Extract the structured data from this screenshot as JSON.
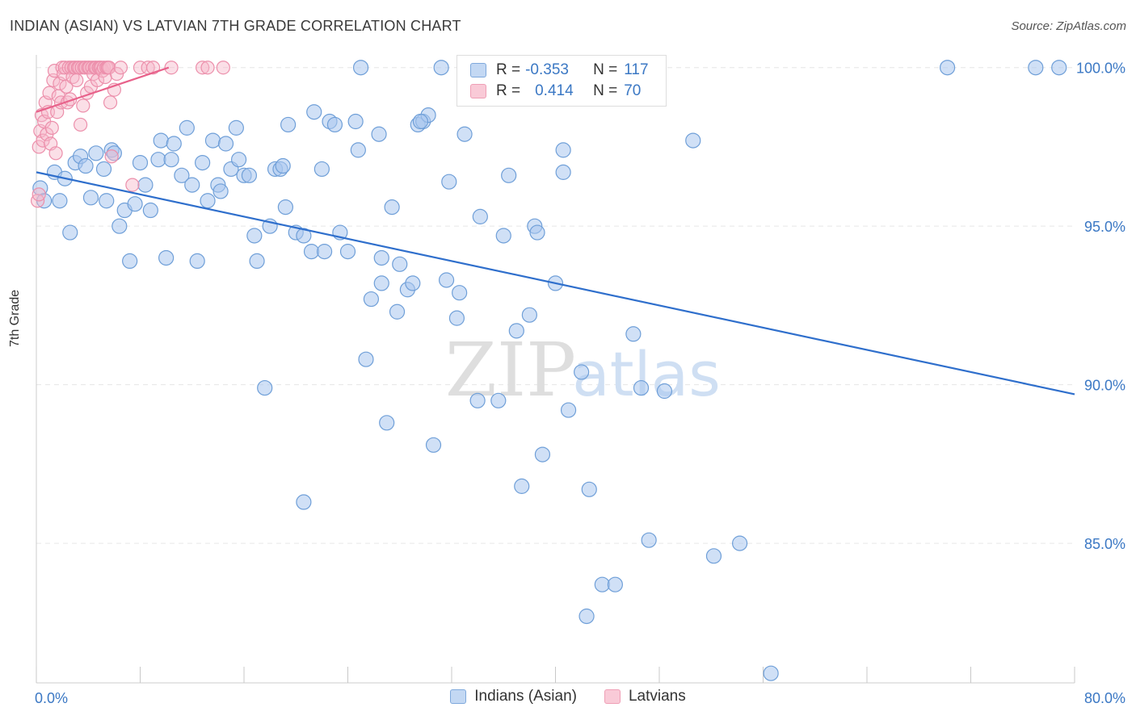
{
  "title": "INDIAN (ASIAN) VS LATVIAN 7TH GRADE CORRELATION CHART",
  "source": "Source: ZipAtlas.com",
  "watermark": {
    "zip": "ZIP",
    "atlas": "atlas"
  },
  "colors": {
    "blue_fill": "#a9c6ee",
    "blue_stroke": "#6f9fd8",
    "blue_line": "#2f6fcc",
    "pink_fill": "#f6b7c9",
    "pink_stroke": "#ec8fab",
    "pink_line": "#e8628b",
    "tick_text": "#3b78c4"
  },
  "legend": {
    "rows": [
      {
        "r_label": "R =",
        "r_value": "-0.353",
        "n_label": "N =",
        "n_value": "117"
      },
      {
        "r_label": "R =",
        "r_value": "0.414",
        "n_label": "N =",
        "n_value": "70"
      }
    ]
  },
  "bottom_legend": [
    "Indians (Asian)",
    "Latvians"
  ],
  "chart_data": {
    "type": "scatter",
    "title": "INDIAN (ASIAN) VS LATVIAN 7TH GRADE CORRELATION CHART",
    "xlabel": "",
    "ylabel": "7th Grade",
    "xlim": [
      0,
      80
    ],
    "ylim": [
      80.6,
      100.4
    ],
    "x_tick_labels": [
      "0.0%",
      "80.0%"
    ],
    "y_ticks": [
      85,
      90,
      95,
      100
    ],
    "y_tick_labels": [
      "85.0%",
      "90.0%",
      "95.0%",
      "100.0%"
    ],
    "grid": true,
    "series": [
      {
        "name": "Indians (Asian)",
        "r": -0.353,
        "n": 117,
        "trend": {
          "x": [
            0,
            80
          ],
          "y": [
            96.7,
            89.7
          ]
        },
        "points": [
          [
            0.3,
            96.2
          ],
          [
            0.6,
            95.8
          ],
          [
            1.4,
            96.7
          ],
          [
            1.8,
            95.8
          ],
          [
            2.2,
            96.5
          ],
          [
            2.6,
            94.8
          ],
          [
            3.0,
            97.0
          ],
          [
            3.4,
            97.2
          ],
          [
            3.8,
            96.9
          ],
          [
            4.2,
            95.9
          ],
          [
            4.6,
            97.3
          ],
          [
            5.2,
            96.8
          ],
          [
            5.4,
            95.8
          ],
          [
            5.8,
            97.4
          ],
          [
            6.0,
            97.3
          ],
          [
            6.4,
            95.0
          ],
          [
            6.8,
            95.5
          ],
          [
            7.2,
            93.9
          ],
          [
            7.6,
            95.7
          ],
          [
            8.0,
            97.0
          ],
          [
            8.4,
            96.3
          ],
          [
            8.8,
            95.5
          ],
          [
            9.4,
            97.1
          ],
          [
            9.6,
            97.7
          ],
          [
            10.0,
            94.0
          ],
          [
            10.4,
            97.1
          ],
          [
            10.6,
            97.6
          ],
          [
            11.2,
            96.6
          ],
          [
            11.6,
            98.1
          ],
          [
            12.0,
            96.3
          ],
          [
            12.4,
            93.9
          ],
          [
            12.8,
            97.0
          ],
          [
            13.2,
            95.8
          ],
          [
            13.6,
            97.7
          ],
          [
            14.0,
            96.3
          ],
          [
            14.2,
            96.1
          ],
          [
            14.6,
            97.6
          ],
          [
            15.0,
            96.8
          ],
          [
            15.4,
            98.1
          ],
          [
            15.6,
            97.1
          ],
          [
            16.0,
            96.6
          ],
          [
            16.4,
            96.6
          ],
          [
            16.8,
            94.7
          ],
          [
            17.0,
            93.9
          ],
          [
            17.6,
            89.9
          ],
          [
            18.0,
            95.0
          ],
          [
            18.4,
            96.8
          ],
          [
            18.8,
            96.8
          ],
          [
            19.2,
            95.6
          ],
          [
            19.4,
            98.2
          ],
          [
            20.0,
            94.8
          ],
          [
            20.6,
            94.7
          ],
          [
            20.6,
            86.3
          ],
          [
            21.2,
            94.2
          ],
          [
            21.4,
            98.6
          ],
          [
            22.0,
            96.8
          ],
          [
            22.2,
            94.2
          ],
          [
            22.6,
            98.3
          ],
          [
            23.0,
            98.2
          ],
          [
            23.4,
            94.8
          ],
          [
            24.0,
            94.2
          ],
          [
            24.6,
            98.3
          ],
          [
            24.8,
            97.4
          ],
          [
            25.4,
            90.8
          ],
          [
            25.8,
            92.7
          ],
          [
            26.4,
            97.9
          ],
          [
            26.6,
            93.2
          ],
          [
            26.6,
            94.0
          ],
          [
            27.0,
            88.8
          ],
          [
            27.4,
            95.6
          ],
          [
            27.8,
            92.3
          ],
          [
            28.0,
            93.8
          ],
          [
            28.6,
            93.0
          ],
          [
            29.0,
            93.2
          ],
          [
            29.4,
            98.2
          ],
          [
            29.8,
            98.3
          ],
          [
            30.2,
            98.5
          ],
          [
            30.6,
            88.1
          ],
          [
            31.2,
            100.0
          ],
          [
            31.6,
            93.3
          ],
          [
            31.8,
            96.4
          ],
          [
            32.4,
            92.1
          ],
          [
            32.6,
            92.9
          ],
          [
            34.0,
            89.5
          ],
          [
            34.2,
            95.3
          ],
          [
            35.6,
            89.5
          ],
          [
            36.0,
            94.7
          ],
          [
            36.4,
            96.6
          ],
          [
            37.0,
            91.7
          ],
          [
            37.4,
            86.8
          ],
          [
            38.0,
            92.2
          ],
          [
            38.4,
            95.0
          ],
          [
            38.6,
            94.8
          ],
          [
            39.0,
            87.8
          ],
          [
            40.0,
            93.2
          ],
          [
            40.6,
            96.7
          ],
          [
            40.6,
            97.4
          ],
          [
            41.0,
            89.2
          ],
          [
            42.0,
            90.4
          ],
          [
            42.4,
            82.7
          ],
          [
            42.6,
            86.7
          ],
          [
            43.6,
            83.7
          ],
          [
            44.6,
            83.7
          ],
          [
            46.0,
            91.6
          ],
          [
            46.6,
            89.9
          ],
          [
            47.2,
            85.1
          ],
          [
            48.4,
            89.8
          ],
          [
            50.6,
            97.7
          ],
          [
            52.2,
            84.6
          ],
          [
            54.2,
            85.0
          ],
          [
            56.6,
            80.9
          ],
          [
            70.2,
            100.0
          ],
          [
            77.0,
            100.0
          ],
          [
            78.8,
            100.0
          ],
          [
            25.0,
            100.0
          ],
          [
            47.4,
            100.0
          ],
          [
            29.6,
            98.3
          ],
          [
            19.0,
            96.9
          ],
          [
            33.0,
            97.9
          ]
        ]
      },
      {
        "name": "Latvians",
        "r": 0.414,
        "n": 70,
        "trend": {
          "x": [
            0,
            10.2
          ],
          "y": [
            98.6,
            100.0
          ]
        },
        "points": [
          [
            0.2,
            97.5
          ],
          [
            0.3,
            98.0
          ],
          [
            0.4,
            98.5
          ],
          [
            0.5,
            97.7
          ],
          [
            0.6,
            98.3
          ],
          [
            0.7,
            98.9
          ],
          [
            0.8,
            97.9
          ],
          [
            0.9,
            98.6
          ],
          [
            1.0,
            99.2
          ],
          [
            1.1,
            97.6
          ],
          [
            1.2,
            98.1
          ],
          [
            1.3,
            99.6
          ],
          [
            1.4,
            99.9
          ],
          [
            1.5,
            97.3
          ],
          [
            1.6,
            98.6
          ],
          [
            1.7,
            99.1
          ],
          [
            1.8,
            99.5
          ],
          [
            1.9,
            98.9
          ],
          [
            2.0,
            100.0
          ],
          [
            2.1,
            99.8
          ],
          [
            2.2,
            100.0
          ],
          [
            2.3,
            99.4
          ],
          [
            2.4,
            98.9
          ],
          [
            2.5,
            100.0
          ],
          [
            2.6,
            99.0
          ],
          [
            2.7,
            100.0
          ],
          [
            2.8,
            99.7
          ],
          [
            2.9,
            100.0
          ],
          [
            3.0,
            100.0
          ],
          [
            3.1,
            99.6
          ],
          [
            3.2,
            100.0
          ],
          [
            3.3,
            100.0
          ],
          [
            3.4,
            98.2
          ],
          [
            3.5,
            100.0
          ],
          [
            3.6,
            98.8
          ],
          [
            3.7,
            100.0
          ],
          [
            3.8,
            100.0
          ],
          [
            3.9,
            99.2
          ],
          [
            4.0,
            100.0
          ],
          [
            4.1,
            100.0
          ],
          [
            4.2,
            99.4
          ],
          [
            4.3,
            100.0
          ],
          [
            4.4,
            99.8
          ],
          [
            4.5,
            100.0
          ],
          [
            4.6,
            100.0
          ],
          [
            4.7,
            99.6
          ],
          [
            4.8,
            100.0
          ],
          [
            4.9,
            100.0
          ],
          [
            5.0,
            100.0
          ],
          [
            5.1,
            99.9
          ],
          [
            5.2,
            100.0
          ],
          [
            5.3,
            99.7
          ],
          [
            5.4,
            100.0
          ],
          [
            5.5,
            100.0
          ],
          [
            5.6,
            100.0
          ],
          [
            5.7,
            98.9
          ],
          [
            5.8,
            97.2
          ],
          [
            6.0,
            99.3
          ],
          [
            6.2,
            99.8
          ],
          [
            6.5,
            100.0
          ],
          [
            7.4,
            96.3
          ],
          [
            8.0,
            100.0
          ],
          [
            8.6,
            100.0
          ],
          [
            9.0,
            100.0
          ],
          [
            10.4,
            100.0
          ],
          [
            12.8,
            100.0
          ],
          [
            13.2,
            100.0
          ],
          [
            14.4,
            100.0
          ],
          [
            0.1,
            95.8
          ],
          [
            0.2,
            96.0
          ]
        ]
      }
    ]
  }
}
